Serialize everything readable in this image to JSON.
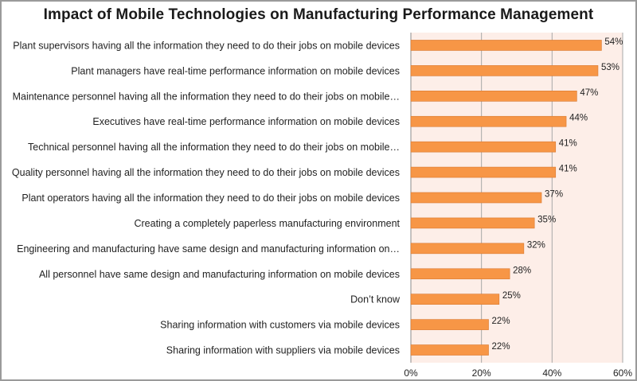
{
  "chart_data": {
    "type": "bar",
    "orientation": "horizontal",
    "title": "Impact of Mobile Technologies on Manufacturing Performance Management",
    "xlim": [
      0,
      60
    ],
    "xticks": [
      "0%",
      "20%",
      "40%",
      "60%"
    ],
    "grid": true,
    "bar_color": "#F79646",
    "plot_background": "#FDEEE8",
    "categories": [
      "Plant supervisors having all the information they need to do their jobs on mobile devices",
      "Plant managers have real-time performance information on mobile devices",
      "Maintenance personnel having all the information they need to do their jobs on mobile…",
      "Executives have real-time performance information on mobile devices",
      "Technical personnel having all the information they need to do their jobs on mobile…",
      "Quality personnel having all the information they need to do their jobs on mobile devices",
      "Plant operators having all the information they need to do their jobs on mobile devices",
      "Creating a completely paperless manufacturing environment",
      "Engineering and manufacturing have same design and manufacturing information on…",
      "All personnel have same design and manufacturing information on mobile devices",
      "Don’t know",
      "Sharing information with customers via mobile devices",
      "Sharing information with suppliers via mobile devices"
    ],
    "values": [
      54,
      53,
      47,
      44,
      41,
      41,
      37,
      35,
      32,
      28,
      25,
      22,
      22
    ],
    "value_labels": [
      "54%",
      "53%",
      "47%",
      "44%",
      "41%",
      "41%",
      "37%",
      "35%",
      "32%",
      "28%",
      "25%",
      "22%",
      "22%"
    ]
  }
}
